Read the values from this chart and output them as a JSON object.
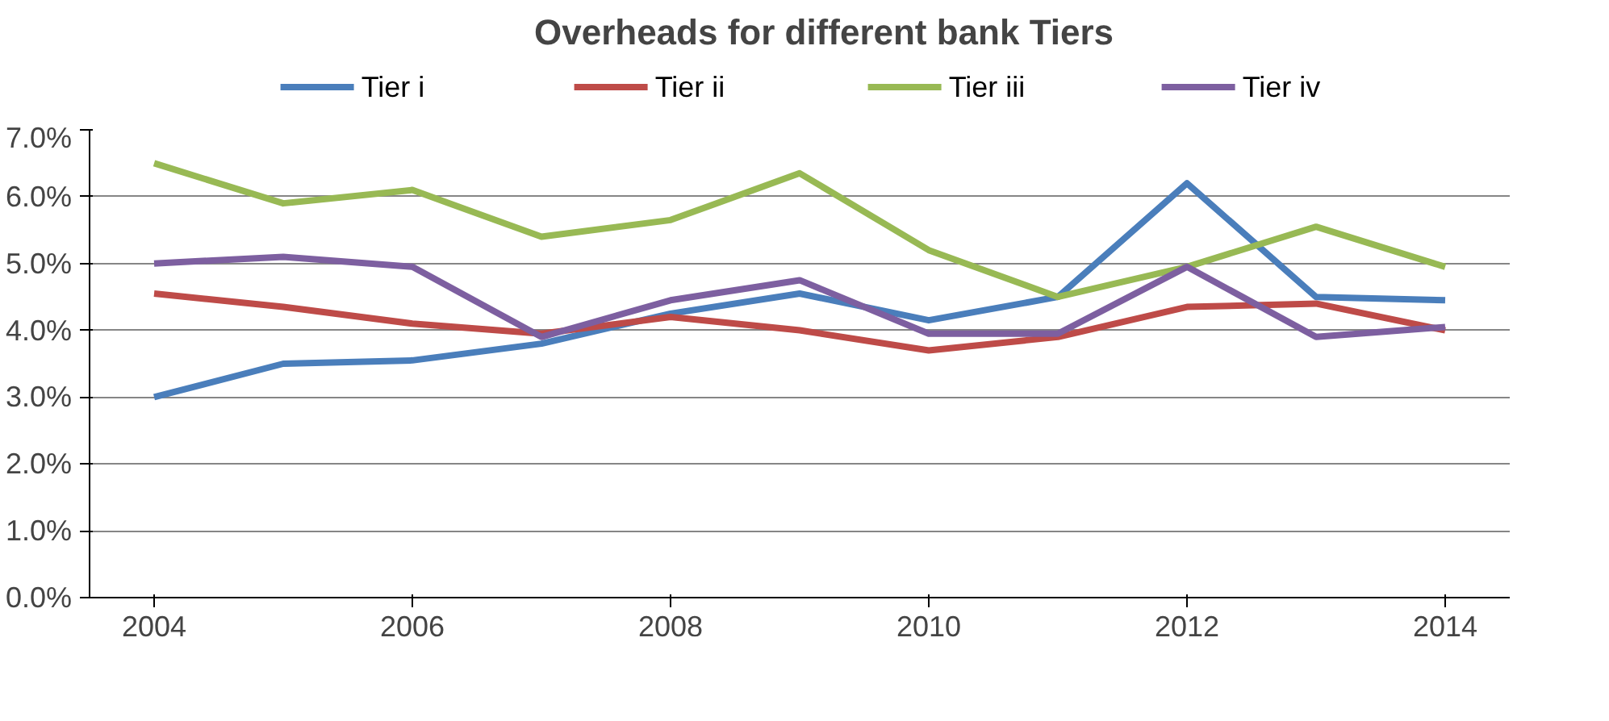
{
  "chart_data": {
    "type": "line",
    "title": "Overheads for different bank Tiers",
    "x": [
      2004,
      2005,
      2006,
      2007,
      2008,
      2009,
      2010,
      2011,
      2012,
      2013,
      2014
    ],
    "xlim": [
      2003.5,
      2014.5
    ],
    "xticks": [
      2004,
      2006,
      2008,
      2010,
      2012,
      2014
    ],
    "ylim": [
      0,
      7
    ],
    "yticks": [
      {
        "value": 0,
        "label": "0.0%"
      },
      {
        "value": 1,
        "label": "1.0%"
      },
      {
        "value": 2,
        "label": "2.0%"
      },
      {
        "value": 3,
        "label": "3.0%"
      },
      {
        "value": 4,
        "label": "4.0%"
      },
      {
        "value": 5,
        "label": "5.0%"
      },
      {
        "value": 6,
        "label": "6.0%"
      },
      {
        "value": 7,
        "label": "7.0%"
      }
    ],
    "grid": "y",
    "legend": "top",
    "marker": "none",
    "series": [
      {
        "name": "Tier i",
        "color": "#4a7ebb",
        "values": [
          3.0,
          3.5,
          3.55,
          3.8,
          4.25,
          4.55,
          4.15,
          4.5,
          6.2,
          4.5,
          4.45
        ]
      },
      {
        "name": "Tier ii",
        "color": "#be4b48",
        "values": [
          4.55,
          4.35,
          4.1,
          3.95,
          4.2,
          4.0,
          3.7,
          3.9,
          4.35,
          4.4,
          4.0
        ]
      },
      {
        "name": "Tier iii",
        "color": "#98b954",
        "values": [
          6.5,
          5.9,
          6.1,
          5.4,
          5.65,
          6.35,
          5.2,
          4.5,
          4.95,
          5.55,
          4.95
        ]
      },
      {
        "name": "Tier iv",
        "color": "#7d5fa0",
        "values": [
          5.0,
          5.1,
          4.95,
          3.9,
          4.45,
          4.75,
          3.95,
          3.95,
          4.95,
          3.9,
          4.05
        ]
      }
    ]
  }
}
